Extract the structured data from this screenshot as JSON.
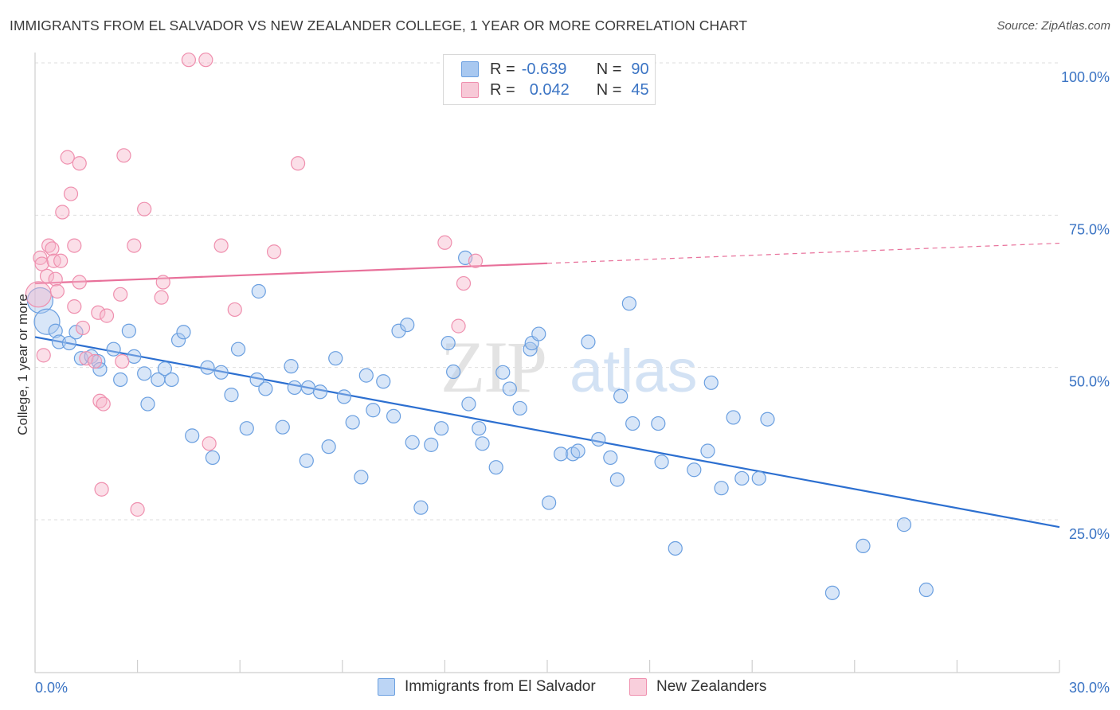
{
  "title": "IMMIGRANTS FROM EL SALVADOR VS NEW ZEALANDER COLLEGE, 1 YEAR OR MORE CORRELATION CHART",
  "source": "Source: ZipAtlas.com",
  "watermark": {
    "zip": "ZIP",
    "atlas": "atlas"
  },
  "legend_top": {
    "r_label": "R =",
    "n_label": "N =",
    "rows": [
      {
        "r": "-0.639",
        "n": "90",
        "color": "#a8c8f0"
      },
      {
        "r": "0.042",
        "n": "45",
        "color": "#f7b8cc"
      }
    ]
  },
  "legend_bottom": [
    {
      "label": "Immigrants from El Salvador",
      "color": "#a8c8f0"
    },
    {
      "label": "New Zealanders",
      "color": "#f7b8cc"
    }
  ],
  "chart_data": {
    "type": "scatter",
    "ylabel": "College, 1 year or more",
    "xlim": [
      0,
      30
    ],
    "ylim": [
      0,
      102
    ],
    "x_tick_labels": [
      "0.0%",
      "30.0%"
    ],
    "y_ticks": [
      25,
      50,
      75,
      100
    ],
    "y_tick_labels": [
      "25.0%",
      "50.0%",
      "75.0%",
      "100.0%"
    ],
    "grid": true,
    "series": [
      {
        "name": "Immigrants from El Salvador",
        "color": "#6a9fe0",
        "fill": "#a8c8f0",
        "trend": {
          "x0": 0,
          "y0": 55.0,
          "x1": 30,
          "y1": 23.8,
          "style": "solid",
          "stroke": "#2c6fd0"
        },
        "points": [
          {
            "x": 0.15,
            "y": 61.0,
            "big": true
          },
          {
            "x": 0.35,
            "y": 57.5,
            "big": true
          },
          {
            "x": 0.6,
            "y": 56.0
          },
          {
            "x": 0.7,
            "y": 54.2
          },
          {
            "x": 1.0,
            "y": 54.0
          },
          {
            "x": 1.2,
            "y": 55.8
          },
          {
            "x": 1.35,
            "y": 51.5
          },
          {
            "x": 1.65,
            "y": 51.8
          },
          {
            "x": 1.85,
            "y": 51.0
          },
          {
            "x": 1.9,
            "y": 49.7
          },
          {
            "x": 2.3,
            "y": 53.0
          },
          {
            "x": 2.5,
            "y": 48.0
          },
          {
            "x": 2.75,
            "y": 56.0
          },
          {
            "x": 2.9,
            "y": 51.8
          },
          {
            "x": 3.2,
            "y": 49.0
          },
          {
            "x": 3.3,
            "y": 44.0
          },
          {
            "x": 3.6,
            "y": 48.0
          },
          {
            "x": 3.8,
            "y": 49.8
          },
          {
            "x": 4.0,
            "y": 48.0
          },
          {
            "x": 4.2,
            "y": 54.5
          },
          {
            "x": 4.35,
            "y": 55.8
          },
          {
            "x": 4.6,
            "y": 38.8
          },
          {
            "x": 5.05,
            "y": 50.0
          },
          {
            "x": 5.2,
            "y": 35.2
          },
          {
            "x": 5.45,
            "y": 49.2
          },
          {
            "x": 5.75,
            "y": 45.5
          },
          {
            "x": 5.95,
            "y": 53.0
          },
          {
            "x": 6.2,
            "y": 40.0
          },
          {
            "x": 6.5,
            "y": 48.0
          },
          {
            "x": 6.55,
            "y": 62.5
          },
          {
            "x": 6.75,
            "y": 46.5
          },
          {
            "x": 7.25,
            "y": 40.2
          },
          {
            "x": 7.5,
            "y": 50.2
          },
          {
            "x": 7.6,
            "y": 46.7
          },
          {
            "x": 7.95,
            "y": 34.7
          },
          {
            "x": 8.0,
            "y": 46.7
          },
          {
            "x": 8.35,
            "y": 46.0
          },
          {
            "x": 8.6,
            "y": 37.0
          },
          {
            "x": 8.8,
            "y": 51.5
          },
          {
            "x": 9.05,
            "y": 45.2
          },
          {
            "x": 9.3,
            "y": 41.0
          },
          {
            "x": 9.55,
            "y": 32.0
          },
          {
            "x": 9.7,
            "y": 48.7
          },
          {
            "x": 9.9,
            "y": 43.0
          },
          {
            "x": 10.2,
            "y": 47.7
          },
          {
            "x": 10.5,
            "y": 42.0
          },
          {
            "x": 10.65,
            "y": 56.0
          },
          {
            "x": 10.9,
            "y": 57.0
          },
          {
            "x": 11.05,
            "y": 37.7
          },
          {
            "x": 11.3,
            "y": 27.0
          },
          {
            "x": 11.6,
            "y": 37.3
          },
          {
            "x": 11.9,
            "y": 40.0
          },
          {
            "x": 12.1,
            "y": 54.0
          },
          {
            "x": 12.25,
            "y": 49.3
          },
          {
            "x": 12.6,
            "y": 68.0
          },
          {
            "x": 12.7,
            "y": 44.0
          },
          {
            "x": 13.0,
            "y": 40.0
          },
          {
            "x": 13.1,
            "y": 37.5
          },
          {
            "x": 13.5,
            "y": 33.6
          },
          {
            "x": 13.7,
            "y": 49.2
          },
          {
            "x": 13.9,
            "y": 46.5
          },
          {
            "x": 14.2,
            "y": 43.3
          },
          {
            "x": 14.5,
            "y": 53.0
          },
          {
            "x": 14.55,
            "y": 54.0
          },
          {
            "x": 14.75,
            "y": 55.5
          },
          {
            "x": 15.05,
            "y": 27.8
          },
          {
            "x": 15.4,
            "y": 35.8
          },
          {
            "x": 15.75,
            "y": 35.8
          },
          {
            "x": 15.9,
            "y": 36.3
          },
          {
            "x": 16.2,
            "y": 54.2
          },
          {
            "x": 16.5,
            "y": 38.2
          },
          {
            "x": 16.85,
            "y": 35.2
          },
          {
            "x": 17.05,
            "y": 31.6
          },
          {
            "x": 17.15,
            "y": 45.3
          },
          {
            "x": 17.4,
            "y": 60.5
          },
          {
            "x": 17.5,
            "y": 40.8
          },
          {
            "x": 18.25,
            "y": 40.8
          },
          {
            "x": 18.35,
            "y": 34.5
          },
          {
            "x": 18.75,
            "y": 20.3
          },
          {
            "x": 19.3,
            "y": 33.2
          },
          {
            "x": 19.7,
            "y": 36.3
          },
          {
            "x": 19.8,
            "y": 47.5
          },
          {
            "x": 20.1,
            "y": 30.2
          },
          {
            "x": 20.45,
            "y": 41.8
          },
          {
            "x": 20.7,
            "y": 31.8
          },
          {
            "x": 21.2,
            "y": 31.8
          },
          {
            "x": 21.45,
            "y": 41.5
          },
          {
            "x": 23.35,
            "y": 13.0
          },
          {
            "x": 24.25,
            "y": 20.7
          },
          {
            "x": 25.45,
            "y": 24.2
          },
          {
            "x": 26.1,
            "y": 13.5
          }
        ]
      },
      {
        "name": "New Zealanders",
        "color": "#ef8fae",
        "fill": "#f7b8cc",
        "trend": {
          "x0": 0,
          "y0": 63.8,
          "x1": 30,
          "y1": 70.4,
          "solid_until": 15,
          "stroke": "#e8709a"
        },
        "points": [
          {
            "x": 0.1,
            "y": 62.0,
            "big": true
          },
          {
            "x": 0.15,
            "y": 68.0
          },
          {
            "x": 0.2,
            "y": 67.0
          },
          {
            "x": 0.25,
            "y": 52.0
          },
          {
            "x": 0.35,
            "y": 65.0
          },
          {
            "x": 0.4,
            "y": 70.0
          },
          {
            "x": 0.5,
            "y": 69.5
          },
          {
            "x": 0.55,
            "y": 67.5
          },
          {
            "x": 0.6,
            "y": 64.5
          },
          {
            "x": 0.65,
            "y": 62.5
          },
          {
            "x": 0.75,
            "y": 67.5
          },
          {
            "x": 0.8,
            "y": 75.5
          },
          {
            "x": 0.95,
            "y": 84.5
          },
          {
            "x": 1.05,
            "y": 78.5
          },
          {
            "x": 1.15,
            "y": 60.0
          },
          {
            "x": 1.15,
            "y": 70.0
          },
          {
            "x": 1.3,
            "y": 83.5
          },
          {
            "x": 1.3,
            "y": 64.0
          },
          {
            "x": 1.4,
            "y": 56.5
          },
          {
            "x": 1.5,
            "y": 51.5
          },
          {
            "x": 1.75,
            "y": 51.0
          },
          {
            "x": 1.85,
            "y": 59.0
          },
          {
            "x": 1.9,
            "y": 44.5
          },
          {
            "x": 1.95,
            "y": 30.0
          },
          {
            "x": 2.0,
            "y": 44.0
          },
          {
            "x": 2.1,
            "y": 58.5
          },
          {
            "x": 2.5,
            "y": 62.0
          },
          {
            "x": 2.55,
            "y": 51.0
          },
          {
            "x": 2.6,
            "y": 84.8
          },
          {
            "x": 2.9,
            "y": 70.0
          },
          {
            "x": 3.0,
            "y": 26.7
          },
          {
            "x": 3.2,
            "y": 76.0
          },
          {
            "x": 3.7,
            "y": 61.5
          },
          {
            "x": 3.75,
            "y": 64.0
          },
          {
            "x": 4.5,
            "y": 100.5
          },
          {
            "x": 5.0,
            "y": 100.5
          },
          {
            "x": 5.1,
            "y": 37.5
          },
          {
            "x": 5.45,
            "y": 70.0
          },
          {
            "x": 5.85,
            "y": 59.5
          },
          {
            "x": 7.0,
            "y": 69.0
          },
          {
            "x": 7.7,
            "y": 83.5
          },
          {
            "x": 12.0,
            "y": 70.5
          },
          {
            "x": 12.4,
            "y": 56.8
          },
          {
            "x": 12.55,
            "y": 63.8
          },
          {
            "x": 12.9,
            "y": 67.5
          }
        ]
      }
    ]
  }
}
